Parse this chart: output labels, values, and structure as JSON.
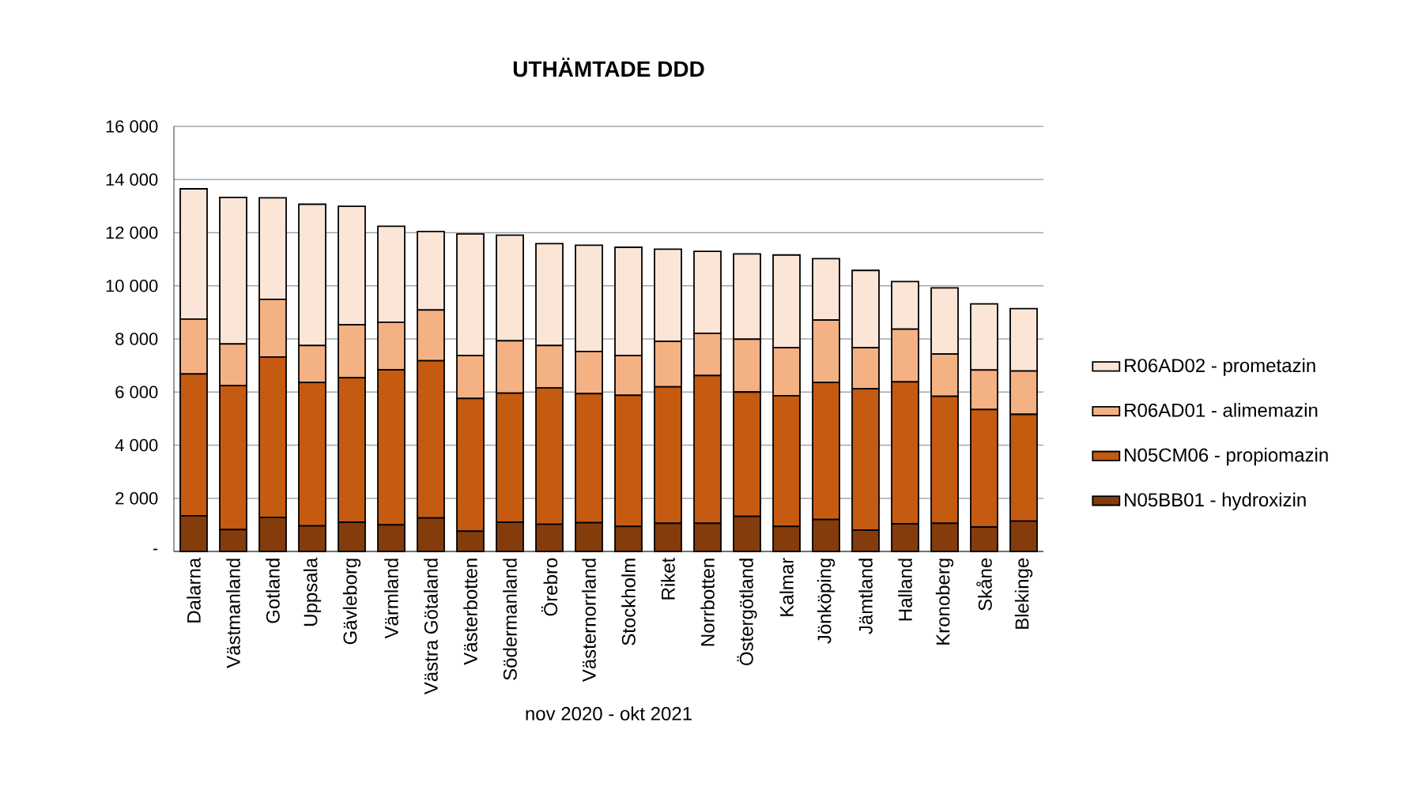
{
  "chart_data": {
    "type": "bar",
    "stacked": true,
    "title": "UTHÄMTADE DDD",
    "xlabel": "nov 2020 - okt 2021",
    "categories": [
      "Dalarna",
      "Västmanland",
      "Gotland",
      "Uppsala",
      "Gävleborg",
      "Värmland",
      "Västra Götaland",
      "Västerbotten",
      "Södermanland",
      "Örebro",
      "Västernorrland",
      "Stockholm",
      "Riket",
      "Norrbotten",
      "Östergötland",
      "Kalmar",
      "Jönköping",
      "Jämtland",
      "Halland",
      "Kronoberg",
      "Skåne",
      "Blekinge"
    ],
    "series": [
      {
        "name": "N05BB01 - hydroxizin",
        "color": "#843c0c",
        "values": [
          1340,
          820,
          1280,
          960,
          1100,
          1000,
          1260,
          760,
          1100,
          1020,
          1080,
          940,
          1060,
          1060,
          1320,
          940,
          1200,
          800,
          1040,
          1060,
          920,
          1140
        ]
      },
      {
        "name": "N05CM06 - propiomazin",
        "color": "#c55a11",
        "values": [
          5340,
          5420,
          6040,
          5400,
          5440,
          5840,
          5920,
          5000,
          4860,
          5140,
          4860,
          4940,
          5140,
          5560,
          4680,
          4920,
          5160,
          5320,
          5340,
          4780,
          4420,
          4020
        ]
      },
      {
        "name": "R06AD01 - alimemazin",
        "color": "#f4b183",
        "values": [
          2070,
          1570,
          2170,
          1390,
          1990,
          1790,
          1910,
          1610,
          1970,
          1590,
          1590,
          1490,
          1710,
          1590,
          1990,
          1810,
          2350,
          1550,
          1990,
          1590,
          1490,
          1630
        ]
      },
      {
        "name": "R06AD02 - prometazin",
        "color": "#fbe5d6",
        "values": [
          4900,
          5520,
          3820,
          5320,
          4460,
          3610,
          2950,
          4580,
          3980,
          3840,
          4000,
          4080,
          3470,
          3090,
          3210,
          3490,
          2310,
          2910,
          1790,
          2490,
          2490,
          2350
        ]
      }
    ],
    "ylim": [
      0,
      16000
    ],
    "yticks": [
      {
        "value": 0,
        "label": "-"
      },
      {
        "value": 2000,
        "label": "2 000"
      },
      {
        "value": 4000,
        "label": "4 000"
      },
      {
        "value": 6000,
        "label": "6 000"
      },
      {
        "value": 8000,
        "label": "8 000"
      },
      {
        "value": 10000,
        "label": "10 000"
      },
      {
        "value": 12000,
        "label": "12 000"
      },
      {
        "value": 14000,
        "label": "14 000"
      },
      {
        "value": 16000,
        "label": "16 000"
      }
    ],
    "grid": "y",
    "legend": "right"
  }
}
